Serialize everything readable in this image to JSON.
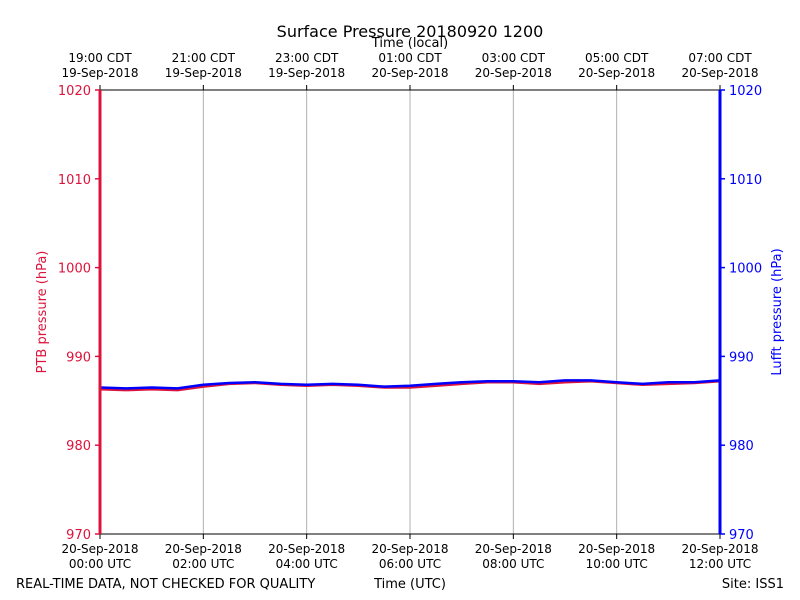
{
  "chart_data": {
    "type": "line",
    "title": "Surface Pressure 20180920 1200",
    "top_axis_label": "Time (local)",
    "xlabel": "Time (UTC)",
    "ylabel_left": "PTB pressure (hPa)",
    "ylabel_right": "Lufft pressure (hPa)",
    "ylim": [
      970,
      1020
    ],
    "y_ticks": [
      970,
      980,
      990,
      1000,
      1010,
      1020
    ],
    "xlim_hours": [
      0,
      12
    ],
    "x_ticks_hours": [
      0,
      2,
      4,
      6,
      8,
      10,
      12
    ],
    "x_tick_labels": [
      [
        "20-Sep-2018",
        "00:00 UTC"
      ],
      [
        "20-Sep-2018",
        "02:00 UTC"
      ],
      [
        "20-Sep-2018",
        "04:00 UTC"
      ],
      [
        "20-Sep-2018",
        "06:00 UTC"
      ],
      [
        "20-Sep-2018",
        "08:00 UTC"
      ],
      [
        "20-Sep-2018",
        "10:00 UTC"
      ],
      [
        "20-Sep-2018",
        "12:00 UTC"
      ]
    ],
    "top_tick_labels": [
      [
        "19:00 CDT",
        "19-Sep-2018"
      ],
      [
        "21:00 CDT",
        "19-Sep-2018"
      ],
      [
        "23:00 CDT",
        "19-Sep-2018"
      ],
      [
        "01:00 CDT",
        "20-Sep-2018"
      ],
      [
        "03:00 CDT",
        "20-Sep-2018"
      ],
      [
        "05:00 CDT",
        "20-Sep-2018"
      ],
      [
        "07:00 CDT",
        "20-Sep-2018"
      ]
    ],
    "grid": "vertical",
    "colors": {
      "ptb": "#dc143c",
      "lufft": "#0000ff",
      "grid": "#b0b0b0"
    },
    "series": [
      {
        "name": "PTB pressure (hPa)",
        "axis": "left",
        "color": "#dc143c",
        "x": [
          0,
          0.5,
          1,
          1.5,
          2,
          2.5,
          3,
          3.5,
          4,
          4.5,
          5,
          5.5,
          6,
          6.5,
          7,
          7.5,
          8,
          8.5,
          9,
          9.5,
          10,
          10.5,
          11,
          11.5,
          12
        ],
        "values": [
          986.3,
          986.2,
          986.3,
          986.2,
          986.6,
          986.9,
          987.0,
          986.8,
          986.7,
          986.8,
          986.7,
          986.5,
          986.5,
          986.7,
          986.9,
          987.1,
          987.1,
          986.9,
          987.1,
          987.2,
          987.0,
          986.8,
          986.9,
          987.0,
          987.2
        ]
      },
      {
        "name": "Lufft pressure (hPa)",
        "axis": "right",
        "color": "#0000ff",
        "x": [
          0,
          0.5,
          1,
          1.5,
          2,
          2.5,
          3,
          3.5,
          4,
          4.5,
          5,
          5.5,
          6,
          6.5,
          7,
          7.5,
          8,
          8.5,
          9,
          9.5,
          10,
          10.5,
          11,
          11.5,
          12
        ],
        "values": [
          986.5,
          986.4,
          986.5,
          986.4,
          986.8,
          987.0,
          987.1,
          986.9,
          986.8,
          986.9,
          986.8,
          986.6,
          986.7,
          986.9,
          987.1,
          987.2,
          987.2,
          987.1,
          987.3,
          987.3,
          987.1,
          986.9,
          987.1,
          987.1,
          987.3
        ]
      }
    ]
  },
  "footer": {
    "disclaimer": "REAL-TIME DATA, NOT CHECKED FOR QUALITY",
    "site": "Site: ISS1"
  }
}
